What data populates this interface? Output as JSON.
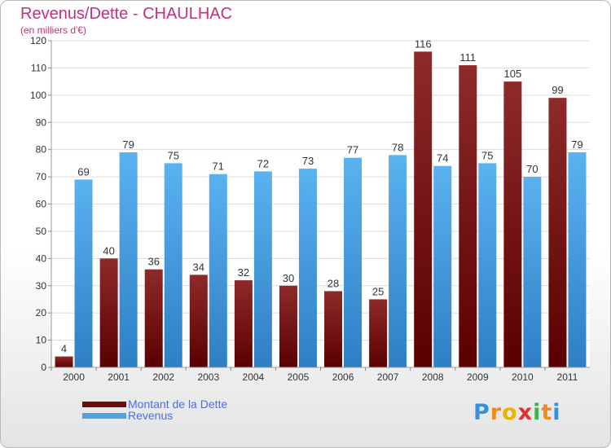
{
  "title": "Revenus/Dette - CHAULHAC",
  "subtitle": "(en milliers d'€)",
  "chart_data": {
    "type": "bar",
    "title": "Revenus/Dette - CHAULHAC",
    "subtitle": "(en milliers d'€)",
    "categories": [
      "2000",
      "2001",
      "2002",
      "2003",
      "2004",
      "2005",
      "2006",
      "2007",
      "2008",
      "2009",
      "2010",
      "2011"
    ],
    "series": [
      {
        "name": "Montant de la Dette",
        "color": "#7a1212",
        "values": [
          4,
          40,
          36,
          34,
          32,
          30,
          28,
          25,
          116,
          111,
          105,
          99
        ]
      },
      {
        "name": "Revenus",
        "color": "#4aa3e8",
        "values": [
          69,
          79,
          75,
          71,
          72,
          73,
          77,
          78,
          74,
          75,
          70,
          79
        ]
      }
    ],
    "ylim": [
      0,
      120
    ],
    "yticks": [
      0,
      10,
      20,
      30,
      40,
      50,
      60,
      70,
      80,
      90,
      100,
      110,
      120
    ],
    "grid": true,
    "legend_position": "bottom-left"
  },
  "legend": [
    {
      "label": "Montant de la Dette",
      "color": "#7a1212"
    },
    {
      "label": "Revenus",
      "color": "#4aa3e8"
    }
  ],
  "logo": {
    "letters": [
      "P",
      "r",
      "o",
      "x",
      "i",
      "t",
      "i"
    ],
    "colors": [
      "#3b8fd6",
      "#f08a1c",
      "#e8b400",
      "#e03030",
      "#3bb54a",
      "#f08a1c",
      "#3b8fd6"
    ]
  }
}
